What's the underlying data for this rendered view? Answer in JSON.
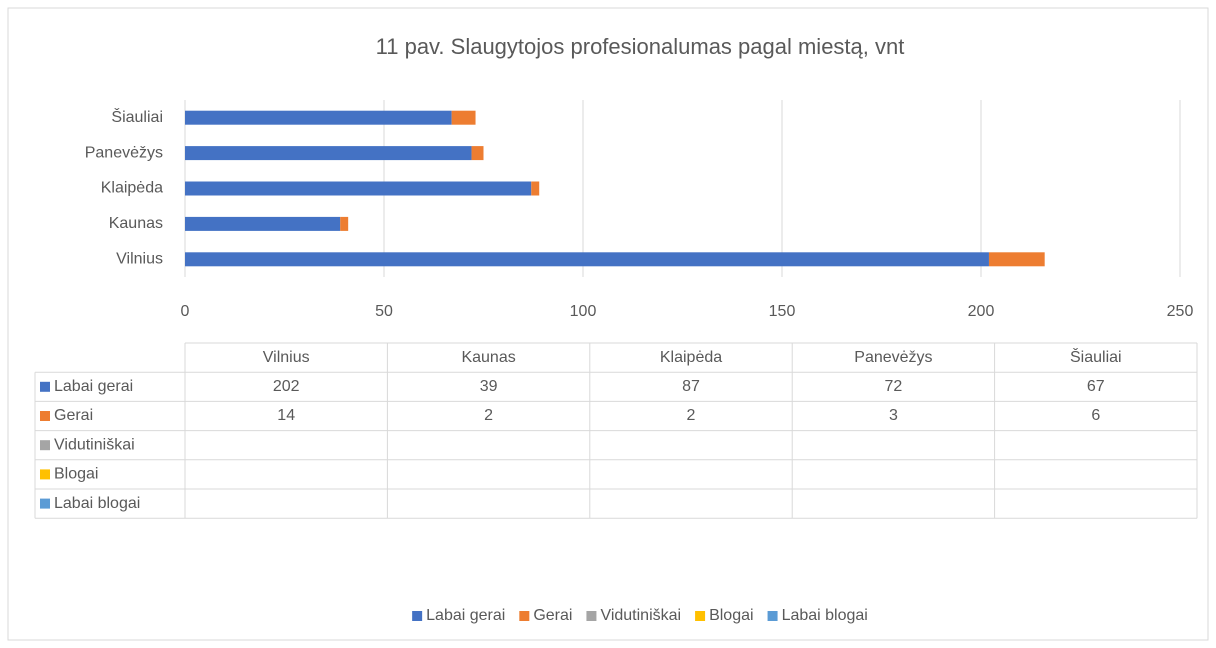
{
  "chart_data": {
    "type": "stacked-bar-horizontal",
    "title": "11 pav. Slaugytojos profesionalumas pagal miestą, vnt",
    "categories": [
      "Vilnius",
      "Kaunas",
      "Klaipėda",
      "Panevėžys",
      "Šiauliai"
    ],
    "series": [
      {
        "name": "Labai gerai",
        "color": "#4472c4",
        "values": [
          202,
          39,
          87,
          72,
          67
        ]
      },
      {
        "name": "Gerai",
        "color": "#ed7d31",
        "values": [
          14,
          2,
          2,
          3,
          6
        ]
      },
      {
        "name": "Vidutiniškai",
        "color": "#a5a5a5",
        "values": [
          null,
          null,
          null,
          null,
          null
        ]
      },
      {
        "name": "Blogai",
        "color": "#ffc000",
        "values": [
          null,
          null,
          null,
          null,
          null
        ]
      },
      {
        "name": "Labai blogai",
        "color": "#5b9bd5",
        "values": [
          null,
          null,
          null,
          null,
          null
        ]
      }
    ],
    "xlim": [
      0,
      250
    ],
    "xticks": [
      0,
      50,
      100,
      150,
      200,
      250
    ],
    "grid": true,
    "legend": "bottom"
  }
}
